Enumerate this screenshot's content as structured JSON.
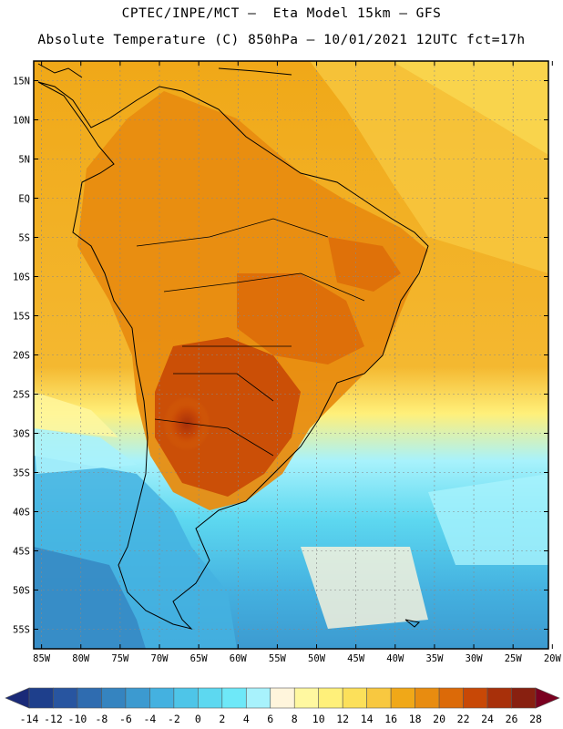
{
  "header": {
    "line1": "CPTEC/INPE/MCT –  Eta Model 15km – GFS",
    "line2": "Absolute Temperature (C) 850hPa – 10/01/2021 12UTC fct=17h"
  },
  "map": {
    "lat_labels": [
      "15N",
      "10N",
      "5N",
      "EQ",
      "5S",
      "10S",
      "15S",
      "20S",
      "25S",
      "30S",
      "35S",
      "40S",
      "45S",
      "50S",
      "55S"
    ],
    "lat_values": [
      15,
      10,
      5,
      0,
      -5,
      -10,
      -15,
      -20,
      -25,
      -30,
      -35,
      -40,
      -45,
      -50,
      -55
    ],
    "lon_labels": [
      "85W",
      "80W",
      "75W",
      "70W",
      "65W",
      "60W",
      "55W",
      "50W",
      "45W",
      "40W",
      "35W",
      "30W",
      "25W",
      "20W"
    ],
    "lon_values": [
      -85,
      -80,
      -75,
      -70,
      -65,
      -60,
      -55,
      -50,
      -45,
      -40,
      -35,
      -30,
      -25,
      -20
    ],
    "lat_range": [
      -57.5,
      17.5
    ],
    "lon_range": [
      -86,
      -20.5
    ]
  },
  "colorbar": {
    "labels": [
      "-14",
      "-12",
      "-10",
      "-8",
      "-6",
      "-4",
      "-2",
      "0",
      "2",
      "4",
      "6",
      "8",
      "10",
      "12",
      "14",
      "16",
      "18",
      "20",
      "22",
      "24",
      "26",
      "28"
    ],
    "colors": [
      "#1e3f8c",
      "#2855a0",
      "#2f6cb0",
      "#3584c0",
      "#3c9ad0",
      "#44b1e0",
      "#4ec5e8",
      "#5dd8f0",
      "#6ee8f8",
      "#a8f2fc",
      "#fff5dc",
      "#fff8a0",
      "#fff07a",
      "#fce05a",
      "#f8c840",
      "#f0a818",
      "#e88c10",
      "#dc6a08",
      "#c84806",
      "#a8300a",
      "#882010"
    ],
    "under_color": "#1a2a78",
    "over_color": "#7a0020"
  }
}
